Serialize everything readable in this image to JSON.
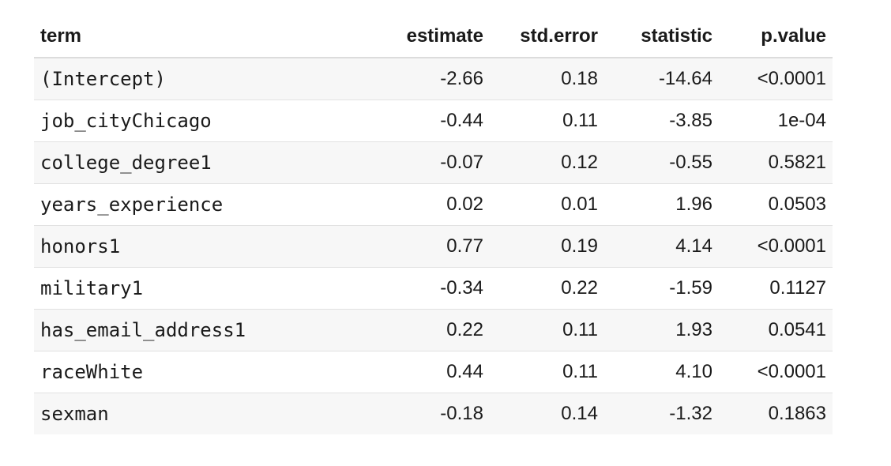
{
  "table": {
    "headers": [
      "term",
      "estimate",
      "std.error",
      "statistic",
      "p.value"
    ],
    "rows": [
      [
        "(Intercept)",
        "-2.66",
        "0.18",
        "-14.64",
        "<0.0001"
      ],
      [
        "job_cityChicago",
        "-0.44",
        "0.11",
        "-3.85",
        "1e-04"
      ],
      [
        "college_degree1",
        "-0.07",
        "0.12",
        "-0.55",
        "0.5821"
      ],
      [
        "years_experience",
        "0.02",
        "0.01",
        "1.96",
        "0.0503"
      ],
      [
        "honors1",
        "0.77",
        "0.19",
        "4.14",
        "<0.0001"
      ],
      [
        "military1",
        "-0.34",
        "0.22",
        "-1.59",
        "0.1127"
      ],
      [
        "has_email_address1",
        "0.22",
        "0.11",
        "1.93",
        "0.0541"
      ],
      [
        "raceWhite",
        "0.44",
        "0.11",
        "4.10",
        "<0.0001"
      ],
      [
        "sexman",
        "-0.18",
        "0.14",
        "-1.32",
        "0.1863"
      ]
    ]
  },
  "colors": {
    "stripe": "#f7f7f7",
    "border": "#dcdcdc",
    "text": "#1a1a1a"
  }
}
